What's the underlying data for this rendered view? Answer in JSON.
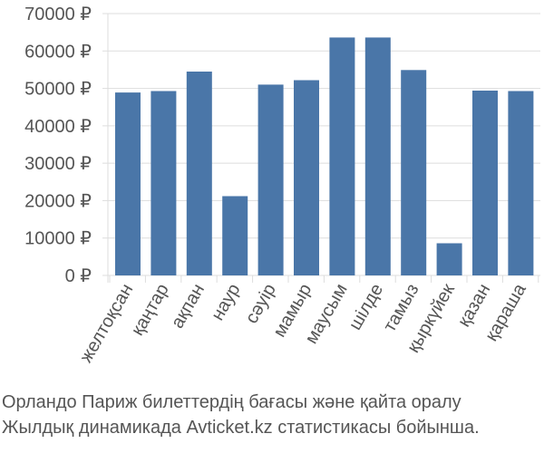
{
  "chart_data": {
    "type": "bar",
    "categories": [
      "желтоқсан",
      "қаңтар",
      "ақпан",
      "наур",
      "сәуір",
      "мамыр",
      "маусым",
      "шілде",
      "тамыз",
      "қыркүйек",
      "қазан",
      "қараша"
    ],
    "values": [
      48900,
      49300,
      54500,
      21200,
      51000,
      52200,
      63600,
      63600,
      54900,
      8600,
      49400,
      49300
    ],
    "y_ticks": [
      "0 ₽",
      "10000 ₽",
      "20000 ₽",
      "30000 ₽",
      "40000 ₽",
      "50000 ₽",
      "60000 ₽",
      "70000 ₽"
    ],
    "ylim": [
      0,
      70000
    ],
    "grid": "horizontal",
    "bar_color": "#4a76a8",
    "grid_color": "#dddddd",
    "text_color": "#555555"
  },
  "caption": {
    "line1": "Орландо Париж билеттердің бағасы және қайта оралу",
    "line2": "Жылдық динамикада Avticket.kz статистикасы бойынша."
  }
}
